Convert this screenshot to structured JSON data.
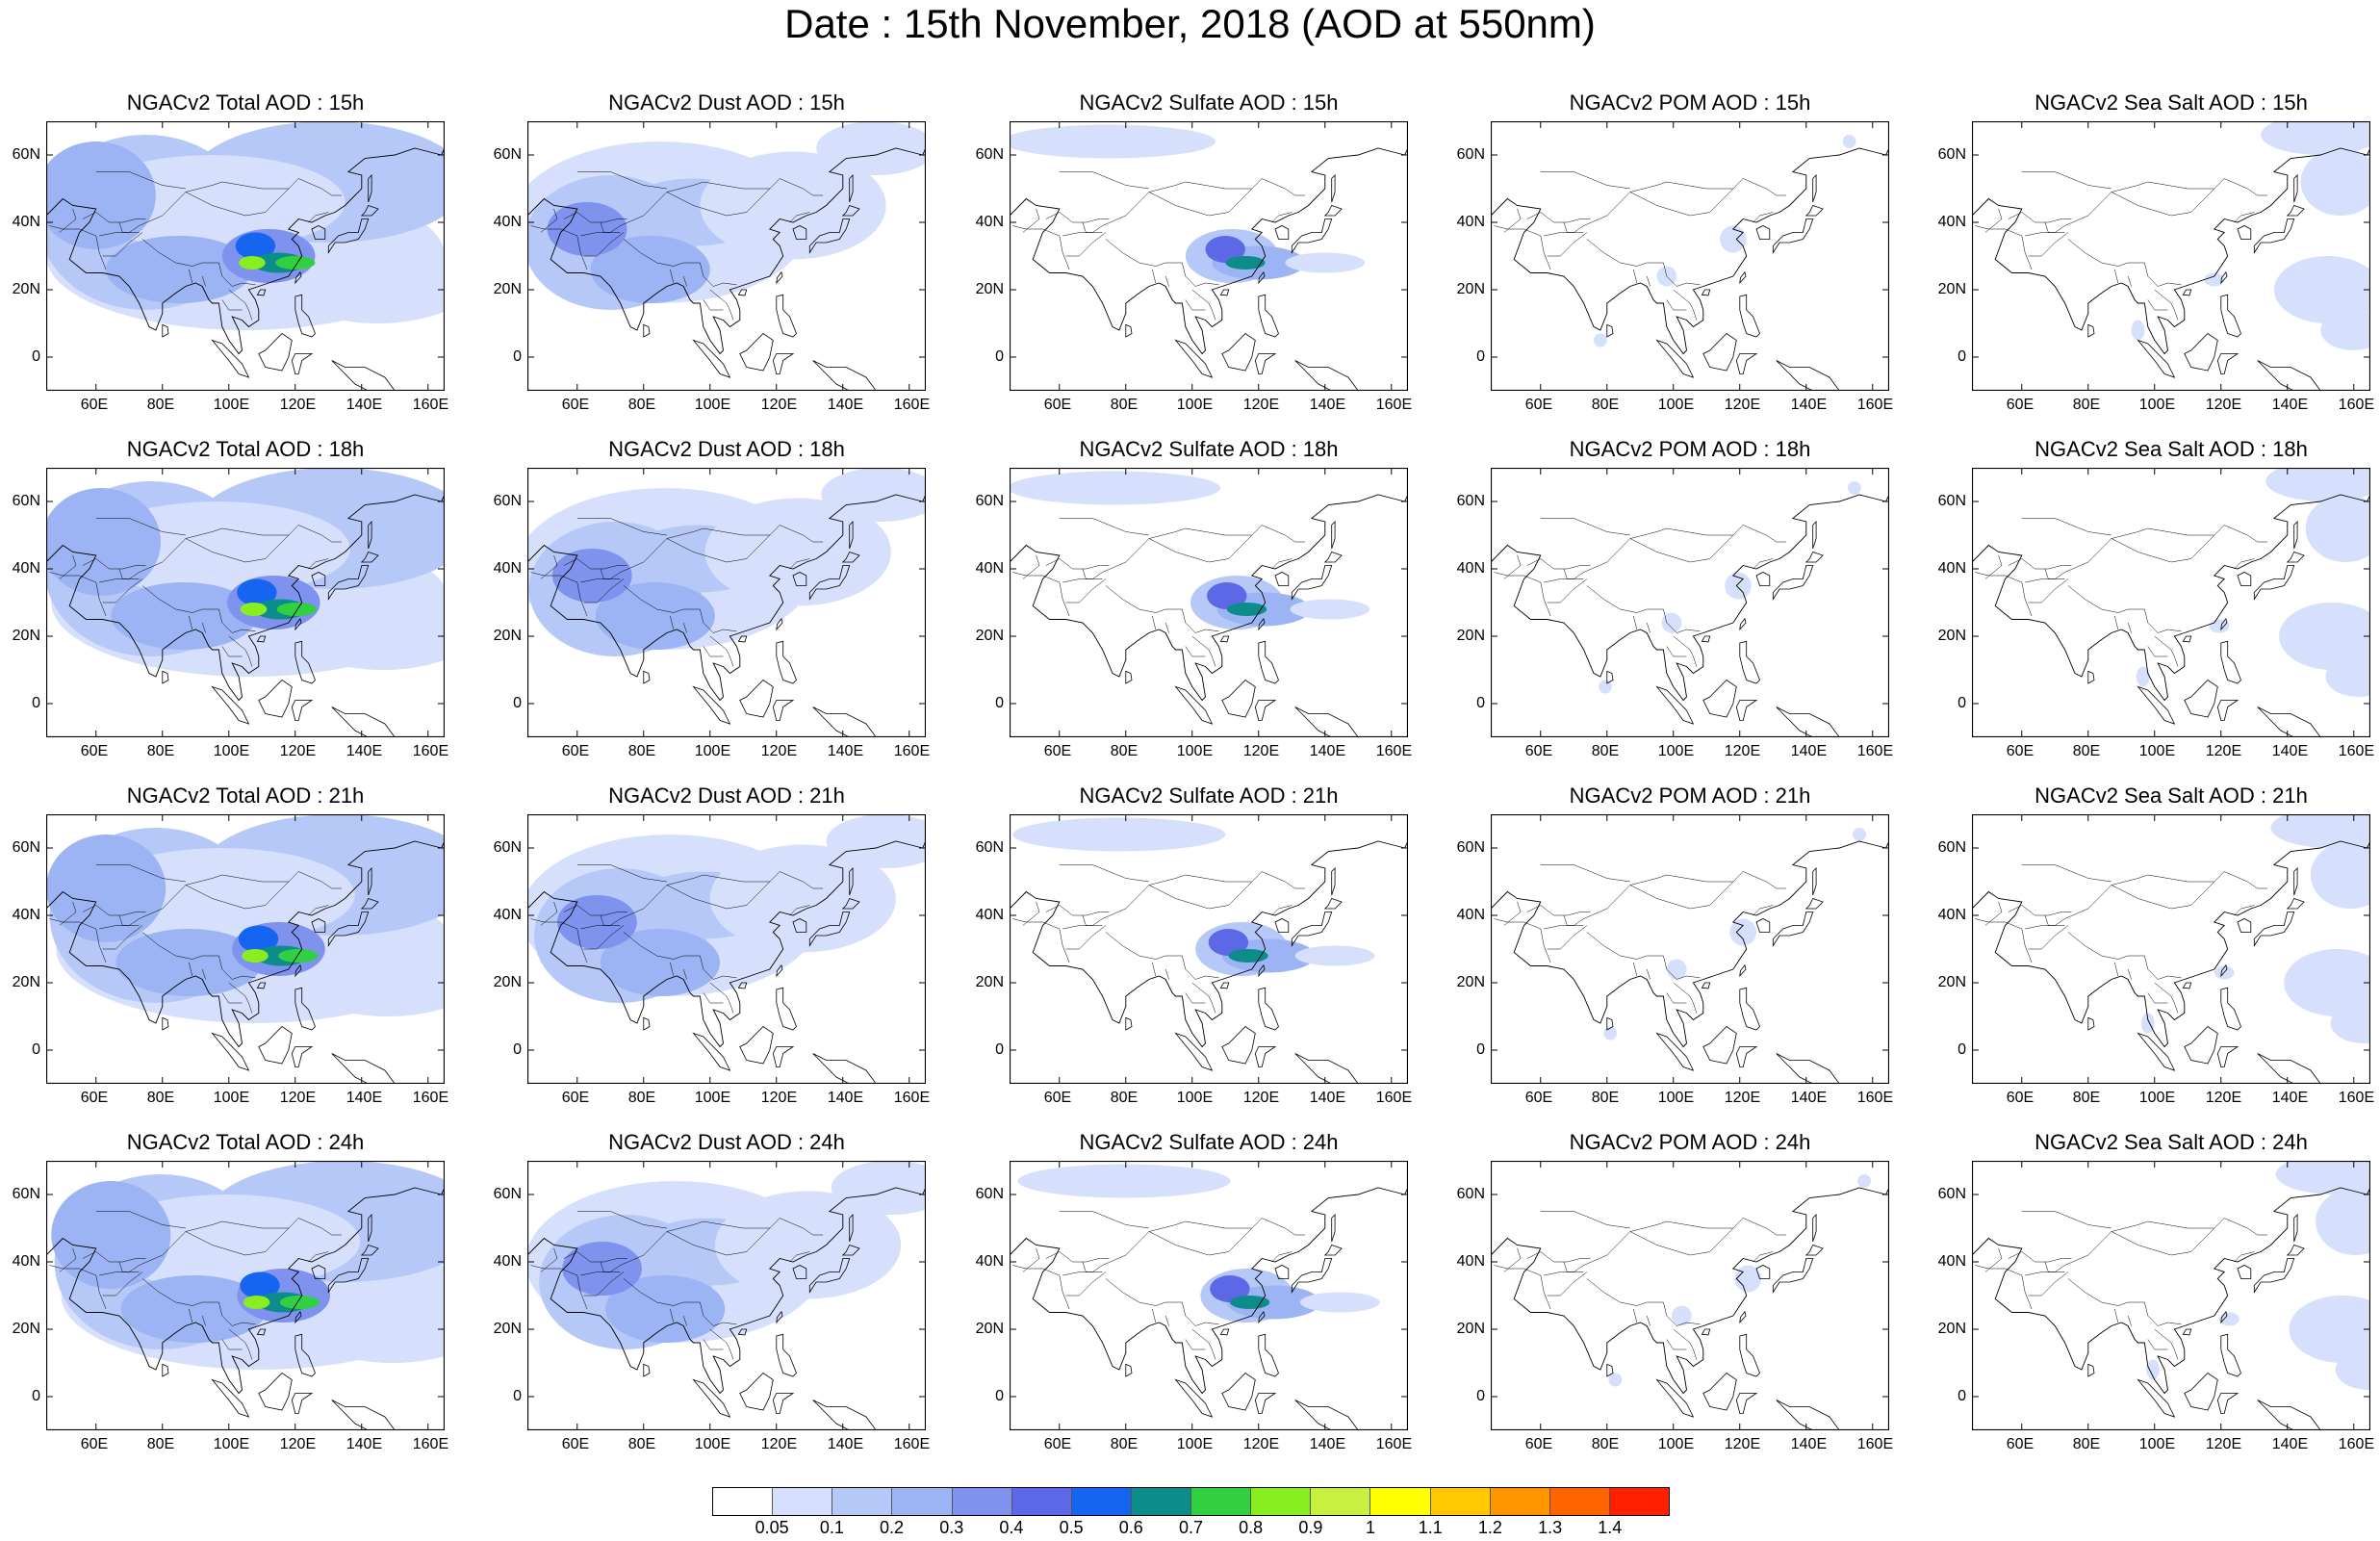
{
  "title": "Date : 15th November, 2018 (AOD at 550nm)",
  "panel_titles": [
    [
      "NGACv2 Total AOD : 15h",
      "NGACv2 Dust AOD : 15h",
      "NGACv2 Sulfate AOD : 15h",
      "NGACv2 POM AOD : 15h",
      "NGACv2 Sea Salt AOD : 15h"
    ],
    [
      "NGACv2 Total AOD : 18h",
      "NGACv2 Dust AOD : 18h",
      "NGACv2 Sulfate AOD : 18h",
      "NGACv2 POM AOD : 18h",
      "NGACv2 Sea Salt AOD : 18h"
    ],
    [
      "NGACv2 Total AOD : 21h",
      "NGACv2 Dust AOD : 21h",
      "NGACv2 Sulfate AOD : 21h",
      "NGACv2 POM AOD : 21h",
      "NGACv2 Sea Salt AOD : 21h"
    ],
    [
      "NGACv2 Total AOD : 24h",
      "NGACv2 Dust AOD : 24h",
      "NGACv2 Sulfate AOD : 24h",
      "NGACv2 POM AOD : 24h",
      "NGACv2 Sea Salt  AOD : 24h"
    ]
  ],
  "lon_ticks": [
    "60E",
    "80E",
    "100E",
    "120E",
    "140E",
    "160E"
  ],
  "lat_ticks": [
    "60N",
    "40N",
    "20N",
    "0"
  ],
  "colorbar": {
    "labels": [
      "0.05",
      "0.1",
      "0.2",
      "0.3",
      "0.4",
      "0.5",
      "0.6",
      "0.7",
      "0.8",
      "0.9",
      "1",
      "1.1",
      "1.2",
      "1.3",
      "1.4"
    ],
    "colors": [
      "#ffffff",
      "#d6e0fc",
      "#b6c8f8",
      "#9cb4f4",
      "#7e92ee",
      "#5c68e6",
      "#1565f0",
      "#0d8c8c",
      "#30d040",
      "#88ee20",
      "#c8f040",
      "#ffff00",
      "#ffc800",
      "#ff9600",
      "#ff6400",
      "#ff2000"
    ]
  }
}
